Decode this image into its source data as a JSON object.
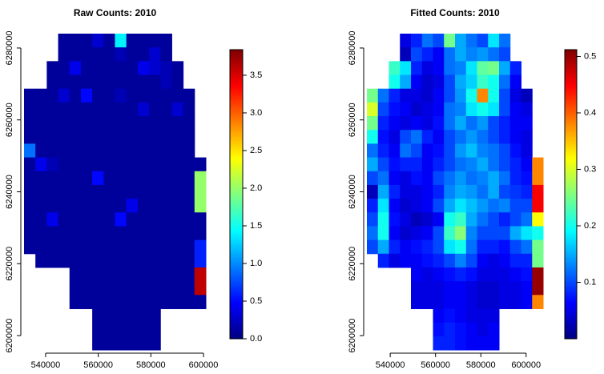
{
  "chart_data": [
    {
      "type": "heatmap",
      "title": "Raw Counts: 2010",
      "colormap": "jet",
      "xlim": [
        531800,
        600900
      ],
      "ylim": [
        6196000,
        6284000
      ],
      "xticks": [
        540000,
        560000,
        580000,
        600000
      ],
      "yticks": [
        6200000,
        6220000,
        6240000,
        6260000,
        6280000
      ],
      "zlim": [
        0,
        3.84
      ],
      "zticks": [
        {
          "value": 0,
          "label": "0.0"
        },
        0.5,
        {
          "value": 1,
          "label": "1.0"
        },
        1.5,
        {
          "value": 2,
          "label": "2.0"
        },
        2.5,
        {
          "value": 3,
          "label": "3.0"
        },
        3.5
      ],
      "z": [
        [
          null,
          null,
          null,
          0.1,
          0.1,
          0.1,
          0.3,
          0.1,
          1.4,
          0.1,
          0.1,
          0.1,
          0.1,
          null,
          null,
          null
        ],
        [
          null,
          null,
          null,
          0.1,
          0.1,
          0.1,
          0.1,
          0.1,
          0.2,
          0.1,
          0.1,
          0.3,
          0.1,
          null,
          null,
          null
        ],
        [
          null,
          null,
          0.1,
          0.1,
          0.4,
          0.1,
          0.1,
          0.1,
          0.1,
          0.1,
          0.4,
          0.3,
          0.2,
          0.1,
          null,
          null
        ],
        [
          null,
          null,
          0.1,
          0.1,
          0.1,
          0.1,
          0.1,
          0.1,
          0.1,
          0.1,
          0.1,
          0.1,
          0.2,
          0.1,
          null,
          null
        ],
        [
          0.1,
          0.1,
          0.1,
          0.3,
          0.1,
          0.5,
          0.1,
          0.1,
          0.2,
          0.1,
          0.1,
          0.1,
          0.1,
          0.1,
          0.1,
          null
        ],
        [
          0.1,
          0.1,
          0.1,
          0.1,
          0.1,
          0.1,
          0.1,
          0.1,
          0.1,
          0.1,
          0.3,
          0.1,
          0.1,
          0.3,
          0.1,
          null
        ],
        [
          0.1,
          0.1,
          0.1,
          0.1,
          0.1,
          0.1,
          0.1,
          0.1,
          0.1,
          0.1,
          0.1,
          0.1,
          0.1,
          0.1,
          0.1,
          null
        ],
        [
          0.1,
          0.1,
          0.1,
          0.1,
          0.1,
          0.1,
          0.1,
          0.1,
          0.1,
          0.1,
          0.1,
          0.1,
          0.1,
          0.1,
          0.1,
          null
        ],
        [
          0.9,
          0.1,
          0.1,
          0.1,
          0.1,
          0.1,
          0.1,
          0.1,
          0.1,
          0.1,
          0.1,
          0.1,
          0.1,
          0.1,
          0.1,
          null
        ],
        [
          0.1,
          0.4,
          0.2,
          0.1,
          0.1,
          0.1,
          0.1,
          0.1,
          0.1,
          0.1,
          0.1,
          0.1,
          0.1,
          0.1,
          0.1,
          0.1
        ],
        [
          0.1,
          0.1,
          0.1,
          0.1,
          0.1,
          0.1,
          0.5,
          0.1,
          0.1,
          0.1,
          0.1,
          0.1,
          0.1,
          0.1,
          0.1,
          2.0
        ],
        [
          0.1,
          0.1,
          0.1,
          0.1,
          0.1,
          0.1,
          0.1,
          0.1,
          0.1,
          0.1,
          0.1,
          0.1,
          0.1,
          0.1,
          0.1,
          2.0
        ],
        [
          0.1,
          0.1,
          0.1,
          0.1,
          0.1,
          0.1,
          0.1,
          0.1,
          0.1,
          0.4,
          0.1,
          0.1,
          0.1,
          0.1,
          0.1,
          2.0
        ],
        [
          0.1,
          0.1,
          0.4,
          0.1,
          0.1,
          0.1,
          0.1,
          0.1,
          0.5,
          0.1,
          0.1,
          0.1,
          0.1,
          0.1,
          0.1,
          0.1
        ],
        [
          0.1,
          0.1,
          0.1,
          0.1,
          0.1,
          0.1,
          0.1,
          0.1,
          0.1,
          0.1,
          0.1,
          0.1,
          0.1,
          0.1,
          0.1,
          0.1
        ],
        [
          0.1,
          0.1,
          0.1,
          0.1,
          0.1,
          0.1,
          0.1,
          0.1,
          0.1,
          0.1,
          0.1,
          0.1,
          0.1,
          0.1,
          0.1,
          0.6
        ],
        [
          null,
          0.1,
          0.1,
          0.1,
          0.1,
          0.1,
          0.1,
          0.1,
          0.1,
          0.1,
          0.1,
          0.1,
          0.1,
          0.1,
          0.1,
          0.6
        ],
        [
          null,
          null,
          null,
          null,
          0.1,
          0.1,
          0.1,
          0.1,
          0.1,
          0.1,
          0.1,
          0.1,
          0.1,
          0.1,
          0.1,
          3.6
        ],
        [
          null,
          null,
          null,
          null,
          0.1,
          0.1,
          0.1,
          0.1,
          0.1,
          0.1,
          0.1,
          0.1,
          0.1,
          0.1,
          0.1,
          3.6
        ],
        [
          null,
          null,
          null,
          null,
          0.1,
          0.1,
          0.1,
          0.1,
          0.1,
          0.1,
          0.1,
          0.1,
          0.1,
          0.1,
          0.1,
          0.1
        ],
        [
          null,
          null,
          null,
          null,
          null,
          null,
          0.1,
          0.1,
          0.1,
          0.1,
          0.1,
          0.1,
          null,
          null,
          null,
          null
        ],
        [
          null,
          null,
          null,
          null,
          null,
          null,
          0.1,
          0.1,
          0.1,
          0.1,
          0.1,
          0.1,
          null,
          null,
          null,
          null
        ],
        [
          null,
          null,
          null,
          null,
          null,
          null,
          0.1,
          0.1,
          0.1,
          0.1,
          0.1,
          0.1,
          null,
          null,
          null,
          null
        ]
      ]
    },
    {
      "type": "heatmap",
      "title": "Fitted Counts: 2010",
      "colormap": "jet",
      "xlim": [
        529700,
        607500
      ],
      "ylim": [
        6196000,
        6284000
      ],
      "xticks": [
        540000,
        560000,
        580000,
        600000
      ],
      "yticks": [
        6200000,
        6220000,
        6240000,
        6260000,
        6280000
      ],
      "zlim": [
        0,
        0.512
      ],
      "zticks": [
        0.1,
        0.2,
        0.3,
        0.4,
        0.5
      ],
      "z": [
        [
          null,
          null,
          null,
          0.05,
          0.08,
          0.12,
          0.1,
          0.25,
          0.15,
          0.12,
          0.1,
          0.18,
          0.12,
          null,
          null,
          null
        ],
        [
          null,
          null,
          null,
          0.03,
          0.1,
          0.08,
          0.06,
          0.12,
          0.15,
          0.13,
          0.14,
          0.12,
          0.1,
          null,
          null,
          null
        ],
        [
          null,
          null,
          0.22,
          0.18,
          0.08,
          0.05,
          0.06,
          0.12,
          0.13,
          0.18,
          0.24,
          0.25,
          0.15,
          0.08,
          null,
          null
        ],
        [
          null,
          null,
          0.2,
          0.15,
          0.06,
          0.04,
          0.05,
          0.1,
          0.15,
          0.17,
          0.22,
          0.2,
          0.12,
          0.06,
          null,
          null
        ],
        [
          0.25,
          0.12,
          0.08,
          0.05,
          0.05,
          0.04,
          0.06,
          0.1,
          0.14,
          0.2,
          0.38,
          0.2,
          0.1,
          0.05,
          0.03,
          null
        ],
        [
          0.3,
          0.1,
          0.07,
          0.06,
          0.04,
          0.05,
          0.06,
          0.12,
          0.13,
          0.18,
          0.2,
          0.18,
          0.1,
          0.06,
          0.05,
          null
        ],
        [
          0.25,
          0.08,
          0.06,
          0.05,
          0.06,
          0.05,
          0.07,
          0.12,
          0.15,
          0.12,
          0.14,
          0.1,
          0.08,
          0.06,
          0.06,
          null
        ],
        [
          0.2,
          0.07,
          0.05,
          0.1,
          0.12,
          0.08,
          0.06,
          0.1,
          0.12,
          0.14,
          0.12,
          0.1,
          0.08,
          0.06,
          0.05,
          null
        ],
        [
          0.12,
          0.08,
          0.06,
          0.12,
          0.1,
          0.06,
          0.07,
          0.1,
          0.14,
          0.16,
          0.13,
          0.12,
          0.1,
          0.07,
          0.05,
          null
        ],
        [
          0.15,
          0.1,
          0.07,
          0.08,
          0.08,
          0.06,
          0.08,
          0.1,
          0.12,
          0.13,
          0.15,
          0.12,
          0.1,
          0.08,
          0.06,
          0.38
        ],
        [
          0.1,
          0.12,
          0.06,
          0.05,
          0.07,
          0.06,
          0.1,
          0.12,
          0.14,
          0.12,
          0.13,
          0.15,
          0.12,
          0.08,
          0.07,
          0.38
        ],
        [
          0.03,
          0.15,
          0.08,
          0.05,
          0.05,
          0.06,
          0.08,
          0.13,
          0.15,
          0.14,
          0.12,
          0.15,
          0.1,
          0.09,
          0.08,
          0.45
        ],
        [
          0.08,
          0.18,
          0.06,
          0.04,
          0.05,
          0.06,
          0.1,
          0.15,
          0.18,
          0.16,
          0.14,
          0.12,
          0.13,
          0.1,
          0.1,
          0.45
        ],
        [
          0.1,
          0.2,
          0.07,
          0.05,
          0.03,
          0.04,
          0.06,
          0.2,
          0.22,
          0.15,
          0.12,
          0.1,
          0.08,
          0.1,
          0.12,
          0.32
        ],
        [
          0.12,
          0.2,
          0.06,
          0.04,
          0.05,
          0.06,
          0.1,
          0.22,
          0.26,
          0.13,
          0.1,
          0.1,
          0.1,
          0.15,
          0.18,
          0.2
        ],
        [
          0.1,
          0.15,
          0.08,
          0.06,
          0.07,
          0.08,
          0.1,
          0.18,
          0.2,
          0.12,
          0.08,
          0.08,
          0.07,
          0.1,
          0.12,
          0.25
        ],
        [
          null,
          0.08,
          0.05,
          0.06,
          0.06,
          0.07,
          0.08,
          0.1,
          0.13,
          0.1,
          0.06,
          0.05,
          0.06,
          0.08,
          0.08,
          0.25
        ],
        [
          null,
          null,
          null,
          null,
          0.06,
          0.05,
          0.06,
          0.07,
          0.08,
          0.07,
          0.05,
          0.05,
          0.05,
          0.06,
          0.07,
          0.5
        ],
        [
          null,
          null,
          null,
          null,
          0.05,
          0.05,
          0.05,
          0.06,
          0.06,
          0.05,
          0.04,
          0.04,
          0.05,
          0.05,
          0.06,
          0.5
        ],
        [
          null,
          null,
          null,
          null,
          0.05,
          0.05,
          0.05,
          0.06,
          0.06,
          0.05,
          0.04,
          0.04,
          0.05,
          0.05,
          0.06,
          0.38
        ],
        [
          null,
          null,
          null,
          null,
          null,
          null,
          0.06,
          0.07,
          0.06,
          0.05,
          0.05,
          0.05,
          null,
          null,
          null,
          null
        ],
        [
          null,
          null,
          null,
          null,
          null,
          null,
          0.07,
          0.08,
          0.07,
          0.06,
          0.05,
          0.06,
          null,
          null,
          null,
          null
        ],
        [
          null,
          null,
          null,
          null,
          null,
          null,
          0.08,
          0.08,
          0.07,
          0.06,
          0.06,
          0.06,
          null,
          null,
          null,
          null
        ]
      ]
    }
  ]
}
